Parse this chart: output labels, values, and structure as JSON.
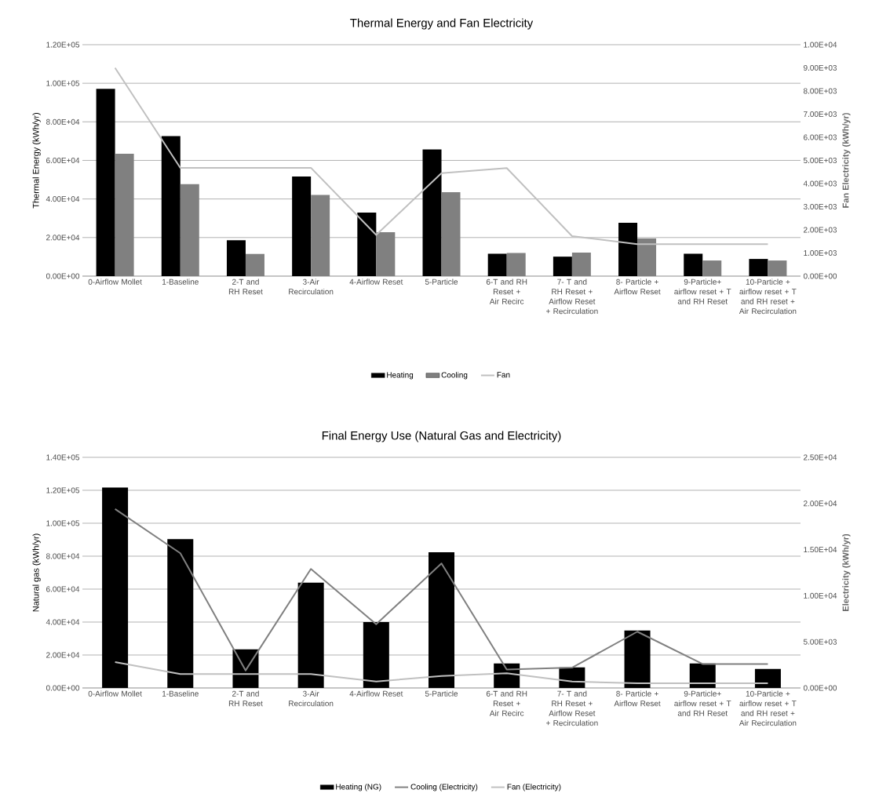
{
  "chart_data": [
    {
      "type": "bar",
      "title": "Thermal Energy and Fan Electricity",
      "ylabel": "Thermal Energy (kWh/yr)",
      "y2label": "Fan Electricity (kWh/yr)",
      "categories": [
        "0-Airflow Mollet",
        "1-Baseline",
        "2-T and RH Reset",
        "3-Air Recirculation",
        "4-Airflow Reset",
        "5-Particle",
        "6-T and RH Reset + Air Recirc",
        "7- T and RH Reset + Airflow Reset + Recirculation",
        "8- Particle + Airflow Reset",
        "9-Particle+ airflow reset + T and RH Reset",
        "10-Particle + airflow reset + T and RH reset + Air Recirculation"
      ],
      "series": [
        {
          "name": "Heating",
          "color": "#000000",
          "values": [
            97100,
            72600,
            18600,
            51700,
            32900,
            65700,
            11600,
            10100,
            27700,
            11600,
            8900
          ]
        },
        {
          "name": "Cooling",
          "color": "#808080",
          "values": [
            63400,
            47700,
            11500,
            42100,
            22800,
            43500,
            12000,
            12200,
            19500,
            8100,
            8100
          ]
        },
        {
          "name": "Fan",
          "type": "line",
          "axis": "y2",
          "color": "#c0c0c0",
          "values": [
            9000,
            4680,
            4680,
            4680,
            1780,
            4450,
            4670,
            1730,
            1380,
            1380,
            1380
          ]
        }
      ],
      "ylim": [
        0,
        120000
      ],
      "yticks": [
        {
          "value": 0,
          "label": "0.00E+00"
        },
        {
          "value": 20000,
          "label": "2.00E+04"
        },
        {
          "value": 40000,
          "label": "4.00E+04"
        },
        {
          "value": 60000,
          "label": "6.00E+04"
        },
        {
          "value": 80000,
          "label": "8.00E+04"
        },
        {
          "value": 100000,
          "label": "1.00E+05"
        },
        {
          "value": 120000,
          "label": "1.20E+05"
        }
      ],
      "y2lim": [
        0,
        10000
      ],
      "y2ticks": [
        {
          "value": 0,
          "label": "0.00E+00"
        },
        {
          "value": 1000,
          "label": "1.00E+03"
        },
        {
          "value": 2000,
          "label": "2.00E+03"
        },
        {
          "value": 3000,
          "label": "3.00E+03"
        },
        {
          "value": 4000,
          "label": "4.00E+03"
        },
        {
          "value": 5000,
          "label": "5.00E+03"
        },
        {
          "value": 6000,
          "label": "6.00E+03"
        },
        {
          "value": 7000,
          "label": "7.00E+03"
        },
        {
          "value": 8000,
          "label": "8.00E+03"
        },
        {
          "value": 9000,
          "label": "9.00E+03"
        },
        {
          "value": 10000,
          "label": "1.00E+04"
        }
      ],
      "grid": "y",
      "legend": "bottom"
    },
    {
      "type": "bar",
      "title": "Final Energy Use (Natural Gas and Electricity)",
      "ylabel": "Natural gas (kWh/yr)",
      "y2label": "Electricity (kWh/yr)",
      "categories": [
        "0-Airflow Mollet",
        "1-Baseline",
        "2-T and RH Reset",
        "3-Air Recirculation",
        "4-Airflow Reset",
        "5-Particle",
        "6-T and RH Reset + Air Recirc",
        "7- T and RH Reset + Airflow Reset + Recirculation",
        "8- Particle + Airflow Reset",
        "9-Particle+ airflow reset + T and RH Reset",
        "10-Particle + airflow reset + T and RH reset + Air Recirculation"
      ],
      "series": [
        {
          "name": "Heating (NG)",
          "color": "#000000",
          "values": [
            121700,
            90400,
            23400,
            63900,
            40000,
            82400,
            14900,
            12500,
            34900,
            14900,
            11500
          ]
        },
        {
          "name": "Cooling (Electricity)",
          "type": "line",
          "axis": "y2",
          "color": "#808080",
          "values": [
            19400,
            14600,
            1900,
            12900,
            6900,
            13500,
            2000,
            2200,
            6100,
            2600,
            2600
          ]
        },
        {
          "name": "Fan (Electricity)",
          "type": "line",
          "axis": "y2",
          "color": "#c0c0c0",
          "values": [
            2800,
            1500,
            1500,
            1500,
            700,
            1300,
            1600,
            700,
            500,
            500,
            500
          ]
        }
      ],
      "ylim": [
        0,
        140000
      ],
      "yticks": [
        {
          "value": 0,
          "label": "0.00E+00"
        },
        {
          "value": 20000,
          "label": "2.00E+04"
        },
        {
          "value": 40000,
          "label": "4.00E+04"
        },
        {
          "value": 60000,
          "label": "6.00E+04"
        },
        {
          "value": 80000,
          "label": "8.00E+04"
        },
        {
          "value": 100000,
          "label": "1.00E+05"
        },
        {
          "value": 120000,
          "label": "1.20E+05"
        },
        {
          "value": 140000,
          "label": "1.40E+05"
        }
      ],
      "y2lim": [
        0,
        25000
      ],
      "y2ticks": [
        {
          "value": 0,
          "label": "0.00E+00"
        },
        {
          "value": 5000,
          "label": "5.00E+03"
        },
        {
          "value": 10000,
          "label": "1.00E+04"
        },
        {
          "value": 15000,
          "label": "1.50E+04"
        },
        {
          "value": 20000,
          "label": "2.00E+04"
        },
        {
          "value": 25000,
          "label": "2.50E+04"
        }
      ],
      "grid": "y",
      "legend": "bottom"
    }
  ]
}
